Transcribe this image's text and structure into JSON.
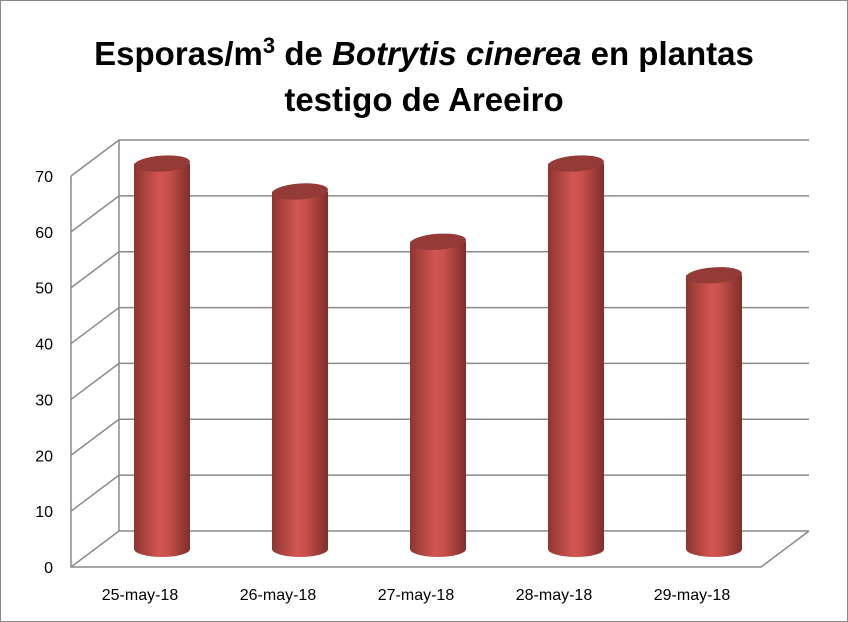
{
  "chart_data": {
    "type": "bar",
    "style": "3d-cylinder",
    "title_parts": {
      "pre": "Esporas/m",
      "sup": "3",
      "mid": " de ",
      "italic": "Botrytis cinerea",
      "post": " en plantas",
      "line2": "testigo de Areeiro"
    },
    "categories": [
      "25-may-18",
      "26-may-18",
      "27-may-18",
      "28-may-18",
      "29-may-18"
    ],
    "values": [
      69,
      64,
      55,
      69,
      49
    ],
    "xlabel": "",
    "ylabel": "",
    "ylim": [
      0,
      70
    ],
    "yticks": [
      0,
      10,
      20,
      30,
      40,
      50,
      60,
      70
    ],
    "grid": true,
    "legend": "none",
    "bar_color": "#c0504d"
  }
}
